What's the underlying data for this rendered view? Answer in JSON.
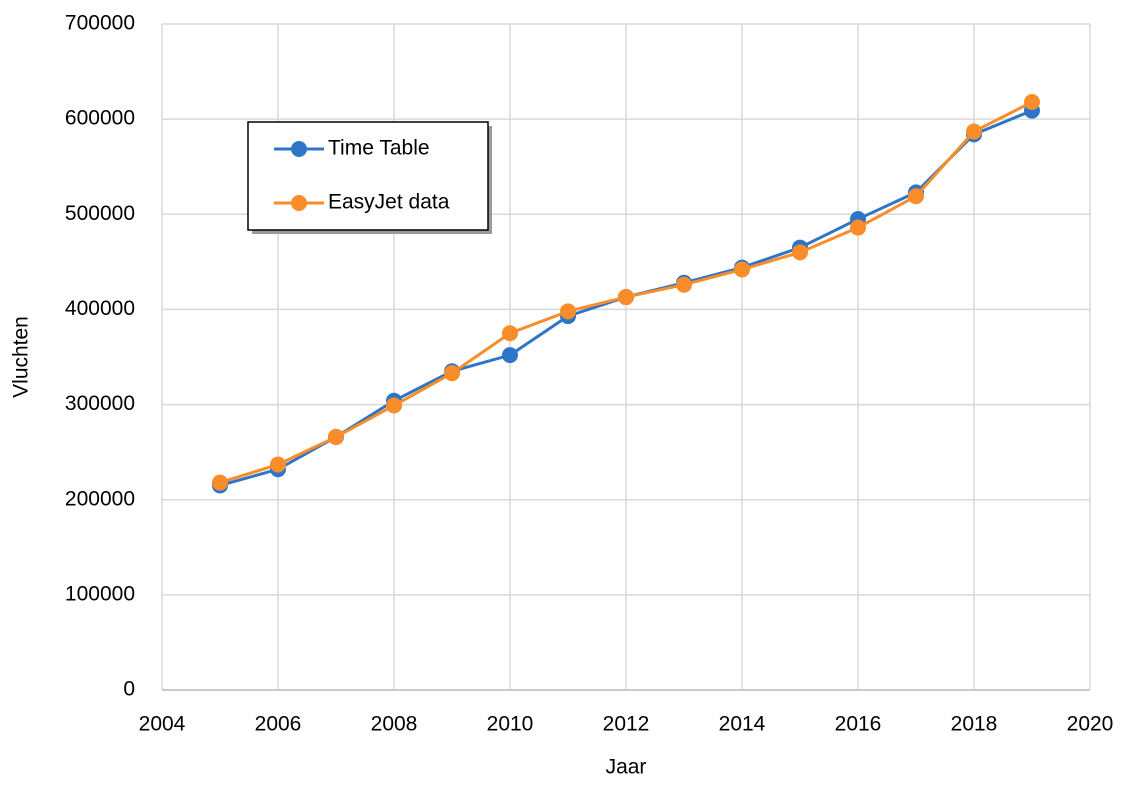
{
  "chart_data": {
    "type": "line",
    "x": [
      2005,
      2006,
      2007,
      2008,
      2009,
      2010,
      2011,
      2012,
      2013,
      2014,
      2015,
      2016,
      2017,
      2018,
      2019
    ],
    "series": [
      {
        "name": "Time Table",
        "color": "#2e75c8",
        "values": [
          215000,
          232000,
          266000,
          304000,
          335000,
          352000,
          393000,
          413000,
          428000,
          444000,
          465000,
          495000,
          523000,
          584000,
          609000
        ]
      },
      {
        "name": "EasyJet data",
        "color": "#f98d2a",
        "values": [
          218000,
          237000,
          266000,
          299000,
          333000,
          375000,
          398000,
          413000,
          426000,
          442000,
          460000,
          486000,
          519000,
          587000,
          618000
        ]
      }
    ],
    "xlabel": "Jaar",
    "ylabel": "Vluchten",
    "xlim": [
      2004,
      2020
    ],
    "xticks": [
      2004,
      2006,
      2008,
      2010,
      2012,
      2014,
      2016,
      2018,
      2020
    ],
    "ylim": [
      0,
      700000
    ],
    "yticks": [
      0,
      100000,
      200000,
      300000,
      400000,
      500000,
      600000,
      700000
    ],
    "grid": true,
    "legend": "upper left"
  }
}
